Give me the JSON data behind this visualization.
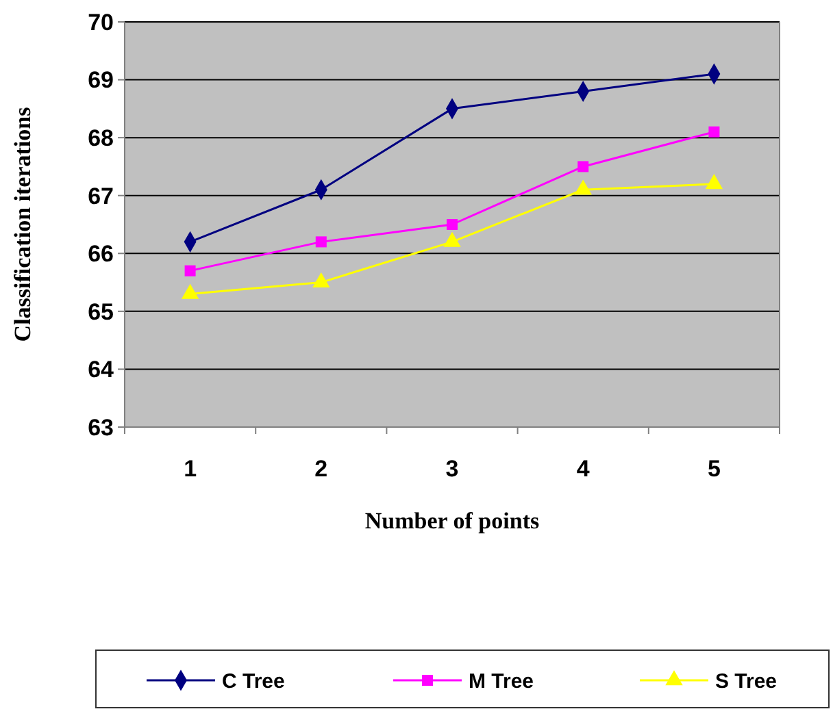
{
  "chart_data": {
    "type": "line",
    "xlabel": "Number of points",
    "ylabel": "Classification iterations",
    "categories": [
      "1",
      "2",
      "3",
      "4",
      "5"
    ],
    "series": [
      {
        "name": "C Tree",
        "color": "#000080",
        "marker": "diamond",
        "values": [
          66.2,
          67.1,
          68.5,
          68.8,
          69.1
        ]
      },
      {
        "name": "M Tree",
        "color": "#ff00ff",
        "marker": "square",
        "values": [
          65.7,
          66.2,
          66.5,
          67.5,
          68.1
        ]
      },
      {
        "name": "S Tree",
        "color": "#ffff00",
        "marker": "triangle",
        "values": [
          65.3,
          65.5,
          66.2,
          67.1,
          67.2
        ]
      }
    ],
    "ylim": [
      63,
      70
    ],
    "yticks": [
      63,
      64,
      65,
      66,
      67,
      68,
      69,
      70
    ],
    "grid": "y",
    "legend": "bottom"
  }
}
